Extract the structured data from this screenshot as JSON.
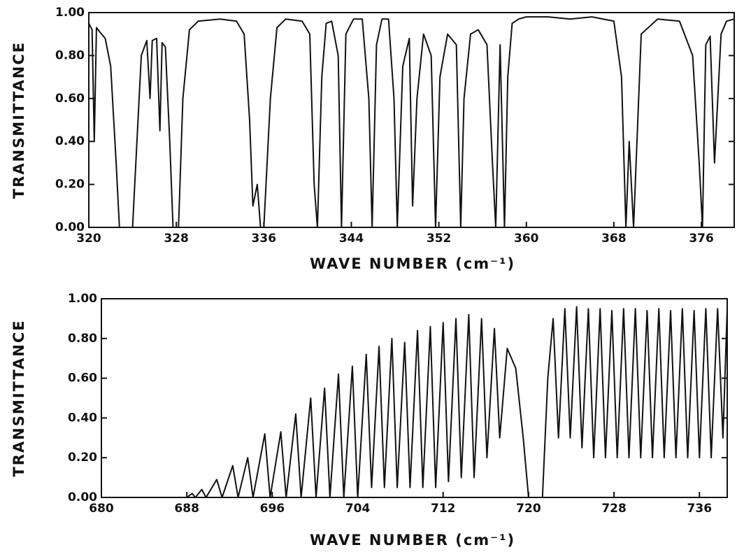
{
  "chart_data": [
    {
      "type": "line",
      "y_label": "TRANSMITTANCE",
      "x_label": "WAVE NUMBER (cm⁻¹)",
      "color": "#111111",
      "xlim": [
        320,
        379
      ],
      "xticks": [
        320,
        328,
        336,
        344,
        352,
        360,
        368,
        376
      ],
      "ylim": [
        0,
        1
      ],
      "yticks": [
        {
          "value": 0,
          "label": "0.00"
        },
        {
          "value": 0.2,
          "label": "0.20"
        },
        {
          "value": 0.4,
          "label": "0.40"
        },
        {
          "value": 0.6,
          "label": "0.60"
        },
        {
          "value": 0.8,
          "label": "0.80"
        },
        {
          "value": 1,
          "label": "1.00"
        }
      ],
      "x": [
        320,
        320.3,
        320.5,
        320.7,
        321,
        321.5,
        322,
        322.5,
        322.8,
        323.5,
        324,
        324.3,
        324.8,
        325.3,
        325.6,
        325.8,
        326.2,
        326.5,
        326.7,
        327,
        327.4,
        327.7,
        328.2,
        328.6,
        329.2,
        330,
        332,
        333.5,
        334.2,
        334.7,
        335,
        335.4,
        335.7,
        336,
        336.6,
        337.2,
        338,
        339.5,
        340.2,
        340.6,
        340.9,
        341.3,
        341.7,
        342.2,
        342.8,
        343.1,
        343.5,
        344.2,
        345,
        345.6,
        345.9,
        346.3,
        346.8,
        347.4,
        347.9,
        348.2,
        348.7,
        349.3,
        349.6,
        350,
        350.6,
        351.3,
        351.7,
        352.1,
        352.8,
        353.6,
        354,
        354.3,
        354.9,
        355.6,
        356.4,
        356.9,
        357.2,
        357.6,
        358,
        358.3,
        358.7,
        359.3,
        360,
        362,
        364,
        366,
        368,
        368.7,
        369.1,
        369.4,
        369.8,
        370.5,
        372,
        374,
        375.2,
        375.8,
        376.1,
        376.4,
        376.8,
        377.2,
        377.8,
        378.3,
        379
      ],
      "values": [
        0.95,
        0.92,
        0.4,
        0.93,
        0.91,
        0.88,
        0.75,
        0.3,
        0,
        0,
        0,
        0.3,
        0.8,
        0.87,
        0.6,
        0.87,
        0.88,
        0.45,
        0.86,
        0.84,
        0.4,
        0,
        0,
        0.6,
        0.92,
        0.96,
        0.97,
        0.96,
        0.9,
        0.5,
        0.1,
        0.2,
        0,
        0,
        0.6,
        0.93,
        0.97,
        0.96,
        0.9,
        0.2,
        0,
        0.7,
        0.95,
        0.96,
        0.8,
        0,
        0.9,
        0.97,
        0.97,
        0.6,
        0,
        0.85,
        0.97,
        0.97,
        0.6,
        0,
        0.75,
        0.88,
        0.1,
        0.6,
        0.9,
        0.8,
        0,
        0.7,
        0.9,
        0.85,
        0,
        0.6,
        0.9,
        0.92,
        0.85,
        0.3,
        0,
        0.85,
        0,
        0.7,
        0.95,
        0.97,
        0.98,
        0.98,
        0.97,
        0.98,
        0.96,
        0.7,
        0,
        0.4,
        0,
        0.9,
        0.97,
        0.96,
        0.8,
        0.3,
        0,
        0.85,
        0.89,
        0.3,
        0.9,
        0.96,
        0.97
      ]
    },
    {
      "type": "line",
      "y_label": "TRANSMITTANCE",
      "x_label": "WAVE NUMBER (cm⁻¹)",
      "color": "#111111",
      "xlim": [
        680,
        738.6
      ],
      "xticks": [
        680,
        688,
        696,
        704,
        712,
        720,
        728,
        736
      ],
      "ylim": [
        0,
        1
      ],
      "yticks": [
        {
          "value": 0,
          "label": "0.00"
        },
        {
          "value": 0.2,
          "label": "0.20"
        },
        {
          "value": 0.4,
          "label": "0.40"
        },
        {
          "value": 0.6,
          "label": "0.60"
        },
        {
          "value": 0.8,
          "label": "0.80"
        },
        {
          "value": 1,
          "label": "1.00"
        }
      ],
      "x": [
        680,
        688,
        688.5,
        688.8,
        689.4,
        689.8,
        690.8,
        691.3,
        692.3,
        692.8,
        693.7,
        694.2,
        695.3,
        695.8,
        696.8,
        697.3,
        698.2,
        698.7,
        699.6,
        700.1,
        700.9,
        701.4,
        702.2,
        702.7,
        703.5,
        704,
        704.8,
        705.3,
        706,
        706.5,
        707.2,
        707.7,
        708.4,
        708.9,
        709.6,
        710.1,
        710.8,
        711.3,
        712,
        712.5,
        713.2,
        713.7,
        714.4,
        714.9,
        715.6,
        716.1,
        716.8,
        717.3,
        718,
        718.8,
        719.5,
        720,
        721.3,
        721.8,
        722.3,
        722.8,
        723.4,
        723.9,
        724.5,
        725,
        725.6,
        726.1,
        726.7,
        727.2,
        727.8,
        728.3,
        728.9,
        729.4,
        730,
        730.5,
        731.1,
        731.6,
        732.2,
        732.7,
        733.3,
        733.8,
        734.4,
        734.9,
        735.5,
        736,
        736.6,
        737.1,
        737.7,
        738.2,
        738.6
      ],
      "values": [
        0,
        0,
        0.02,
        0,
        0.04,
        0,
        0.09,
        0,
        0.16,
        0,
        0.2,
        0,
        0.32,
        0,
        0.33,
        0,
        0.42,
        0,
        0.5,
        0,
        0.55,
        0,
        0.62,
        0,
        0.66,
        0,
        0.72,
        0.05,
        0.76,
        0.05,
        0.8,
        0.05,
        0.78,
        0.05,
        0.84,
        0.05,
        0.86,
        0.05,
        0.88,
        0.08,
        0.9,
        0.1,
        0.92,
        0.1,
        0.9,
        0.2,
        0.85,
        0.3,
        0.75,
        0.65,
        0.3,
        0,
        0,
        0.6,
        0.9,
        0.3,
        0.95,
        0.3,
        0.96,
        0.25,
        0.95,
        0.2,
        0.95,
        0.2,
        0.94,
        0.2,
        0.95,
        0.2,
        0.95,
        0.2,
        0.94,
        0.2,
        0.95,
        0.2,
        0.94,
        0.2,
        0.95,
        0.2,
        0.94,
        0.2,
        0.95,
        0.2,
        0.95,
        0.3,
        0.95
      ]
    }
  ]
}
